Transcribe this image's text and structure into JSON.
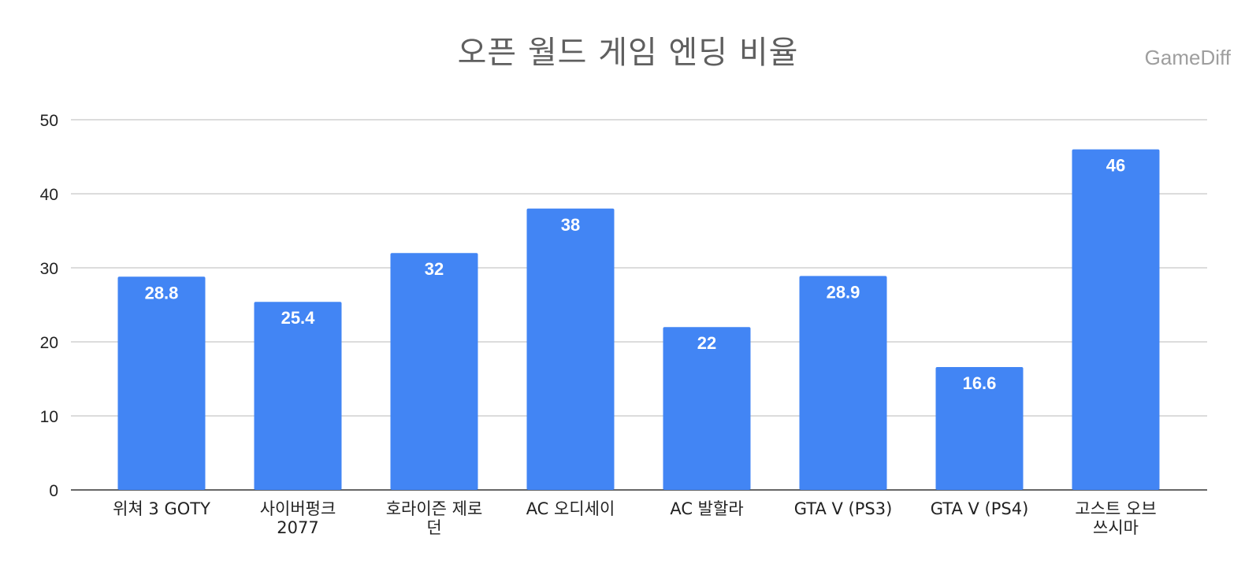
{
  "chart_data": {
    "type": "bar",
    "title": "오픈 월드 게임 엔딩 비율",
    "watermark": "GameDiff",
    "categories": [
      [
        "위쳐 3 GOTY"
      ],
      [
        "사이버펑크",
        "2077"
      ],
      [
        "호라이즌 제로",
        "던"
      ],
      [
        "AC 오디세이"
      ],
      [
        "AC 발할라"
      ],
      [
        "GTA V (PS3)"
      ],
      [
        "GTA V (PS4)"
      ],
      [
        "고스트 오브",
        "쓰시마"
      ]
    ],
    "values": [
      28.8,
      25.4,
      32,
      38,
      22,
      28.9,
      16.6,
      46
    ],
    "value_labels": [
      "28.8",
      "25.4",
      "32",
      "38",
      "22",
      "28.9",
      "16.6",
      "46"
    ],
    "yticks": [
      0,
      10,
      20,
      30,
      40,
      50
    ],
    "ylim": [
      0,
      50
    ],
    "xlabel": "",
    "ylabel": "",
    "grid": true,
    "legend": "none",
    "bar_color": "#4285f4"
  }
}
